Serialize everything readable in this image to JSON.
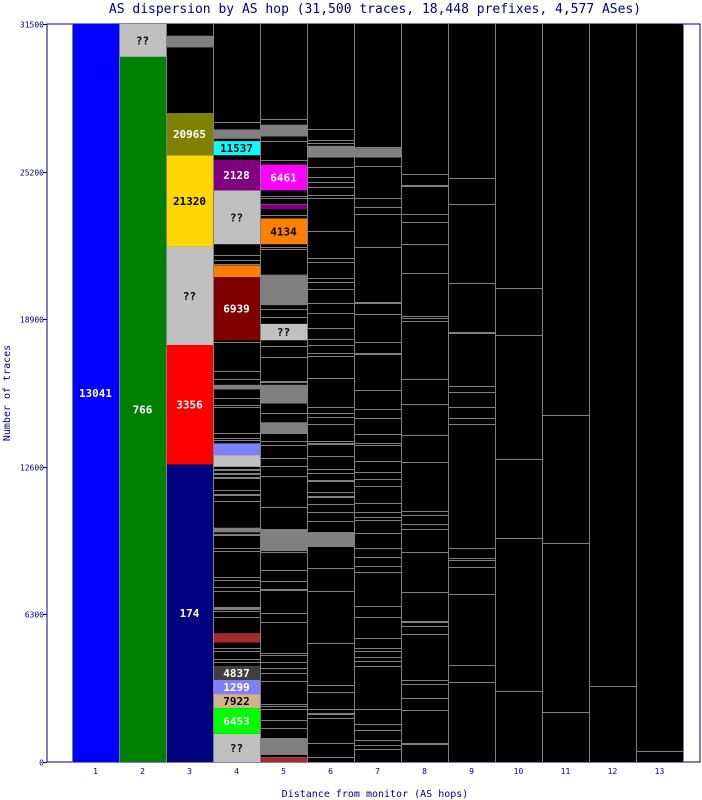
{
  "chart_data": {
    "type": "bar",
    "title": "AS dispersion by AS hop (31,500 traces, 18,448 prefixes, 4,577 ASes)",
    "xlabel": "Distance from monitor (AS hops)",
    "ylabel": "Number of traces",
    "ylim": [
      0,
      31500
    ],
    "yticks": [
      0,
      6300,
      12600,
      18900,
      25200,
      31500
    ],
    "categories": [
      "1",
      "2",
      "3",
      "4",
      "5",
      "6",
      "7",
      "8",
      "9",
      "10",
      "11",
      "12",
      "13"
    ],
    "background_color": "#000000",
    "gray_color": "#808080",
    "segments": [
      {
        "hop": 1,
        "from": 0,
        "to": 31500,
        "color": "#0000ff",
        "label": "13041"
      },
      {
        "hop": 2,
        "from": 0,
        "to": 30100,
        "color": "#008000",
        "label": "766"
      },
      {
        "hop": 2,
        "from": 30100,
        "to": 31500,
        "color": "#c0c0c0",
        "label": "??"
      },
      {
        "hop": 3,
        "from": 0,
        "to": 12700,
        "color": "#000080",
        "label": "174"
      },
      {
        "hop": 3,
        "from": 12700,
        "to": 17800,
        "color": "#ff0000",
        "label": "3356"
      },
      {
        "hop": 3,
        "from": 17800,
        "to": 22000,
        "color": "#c0c0c0",
        "label": "??"
      },
      {
        "hop": 3,
        "from": 22000,
        "to": 25900,
        "color": "#ffd700",
        "label": "21320"
      },
      {
        "hop": 3,
        "from": 25900,
        "to": 27700,
        "color": "#808000",
        "label": "20965"
      },
      {
        "hop": 4,
        "from": 0,
        "to": 1200,
        "color": "#c0c0c0",
        "label": "??"
      },
      {
        "hop": 4,
        "from": 1200,
        "to": 2300,
        "color": "#00ff00",
        "label": "6453"
      },
      {
        "hop": 4,
        "from": 2300,
        "to": 2900,
        "color": "#d2b48c",
        "label": "7922"
      },
      {
        "hop": 4,
        "from": 2900,
        "to": 3500,
        "color": "#8080ff",
        "label": "1299"
      },
      {
        "hop": 4,
        "from": 3500,
        "to": 4100,
        "color": "#404040",
        "label": "4837"
      },
      {
        "hop": 4,
        "from": 5100,
        "to": 5500,
        "color": "#a52a2a",
        "label": ""
      },
      {
        "hop": 4,
        "from": 12600,
        "to": 13100,
        "color": "#c0c0c0",
        "label": ""
      },
      {
        "hop": 4,
        "from": 13100,
        "to": 13600,
        "color": "#8080ff",
        "label": ""
      },
      {
        "hop": 4,
        "from": 18000,
        "to": 20700,
        "color": "#800000",
        "label": "6939"
      },
      {
        "hop": 4,
        "from": 20700,
        "to": 21200,
        "color": "#ff8000",
        "label": ""
      },
      {
        "hop": 4,
        "from": 22100,
        "to": 24400,
        "color": "#c0c0c0",
        "label": "??"
      },
      {
        "hop": 4,
        "from": 24400,
        "to": 25700,
        "color": "#800080",
        "label": "2128"
      },
      {
        "hop": 4,
        "from": 25900,
        "to": 26500,
        "color": "#00ffff",
        "label": "11537"
      },
      {
        "hop": 5,
        "from": 0,
        "to": 200,
        "color": "#a52a2a",
        "label": ""
      },
      {
        "hop": 5,
        "from": 18000,
        "to": 18700,
        "color": "#c0c0c0",
        "label": "??"
      },
      {
        "hop": 5,
        "from": 22100,
        "to": 23200,
        "color": "#ff8000",
        "label": "4134"
      },
      {
        "hop": 5,
        "from": 23600,
        "to": 23800,
        "color": "#800080",
        "label": ""
      },
      {
        "hop": 5,
        "from": 24400,
        "to": 25500,
        "color": "#ff00ff",
        "label": "6461"
      }
    ],
    "gray_blocks": [
      {
        "hop": 3,
        "from": 30500,
        "to": 31000
      },
      {
        "hop": 4,
        "from": 9800,
        "to": 10000
      },
      {
        "hop": 4,
        "from": 15900,
        "to": 16100
      },
      {
        "hop": 4,
        "from": 26600,
        "to": 27000
      },
      {
        "hop": 5,
        "from": 300,
        "to": 1000
      },
      {
        "hop": 5,
        "from": 9000,
        "to": 9900
      },
      {
        "hop": 5,
        "from": 14000,
        "to": 14500
      },
      {
        "hop": 5,
        "from": 15300,
        "to": 16100
      },
      {
        "hop": 5,
        "from": 19500,
        "to": 20800
      },
      {
        "hop": 5,
        "from": 26700,
        "to": 27200
      },
      {
        "hop": 6,
        "from": 9200,
        "to": 9800
      },
      {
        "hop": 6,
        "from": 25800,
        "to": 26300
      },
      {
        "hop": 7,
        "from": 25800,
        "to": 26200
      }
    ]
  }
}
